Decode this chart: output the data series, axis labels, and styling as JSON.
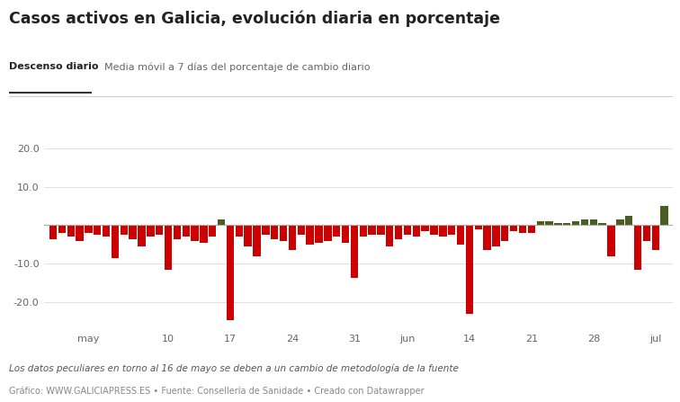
{
  "title": "Casos activos en Galicia, evolución diaria en porcentaje",
  "legend_label1": "Descenso diario",
  "legend_label2": "Media móvil a 7 días del porcentaje de cambio diario",
  "footnote": "Los datos peculiares en torno al 16 de mayo se deben a un cambio de metodología de la fuente",
  "source": "Gráfico: WWW.GALICIAPRESS.ES • Fuente: Consellería de Sanidade • Creado con Datawrapper",
  "ylim": [
    -27,
    25
  ],
  "yticks": [
    -20.0,
    -10.0,
    10.0,
    20.0
  ],
  "background_color": "#ffffff",
  "bar_color_neg": "#cc0000",
  "bar_color_pos": "#4a5e23",
  "zero_line_color": "#aaaaaa",
  "grid_color": "#e0e0e0",
  "values": [
    -3.5,
    -2.0,
    -3.0,
    -4.0,
    -2.0,
    -2.5,
    -3.0,
    -8.5,
    -2.5,
    -3.5,
    -5.5,
    -3.0,
    -2.5,
    -11.5,
    -3.5,
    -3.0,
    -4.0,
    -4.5,
    -3.0,
    1.5,
    -24.5,
    -3.0,
    -5.5,
    -8.0,
    -2.5,
    -3.5,
    -4.0,
    -6.5,
    -2.5,
    -5.0,
    -4.5,
    -4.0,
    -3.0,
    -4.5,
    -13.5,
    -3.0,
    -2.5,
    -2.5,
    -5.5,
    -3.5,
    -2.5,
    -3.0,
    -1.5,
    -2.5,
    -3.0,
    -2.5,
    -5.0,
    -23.0,
    -1.0,
    -6.5,
    -5.5,
    -4.0,
    -1.5,
    -2.0,
    -2.0,
    1.0,
    1.0,
    0.5,
    0.5,
    1.0,
    1.5,
    1.5,
    0.5,
    -8.0,
    1.5,
    2.5,
    -11.5,
    -4.0,
    -6.5,
    5.0
  ],
  "xtick_positions": [
    4,
    13,
    20,
    27,
    34,
    40,
    47,
    54,
    61,
    68
  ],
  "xtick_labels": [
    "may",
    "10",
    "17",
    "24",
    "31",
    "jun",
    "14",
    "21",
    "28",
    "jul"
  ]
}
